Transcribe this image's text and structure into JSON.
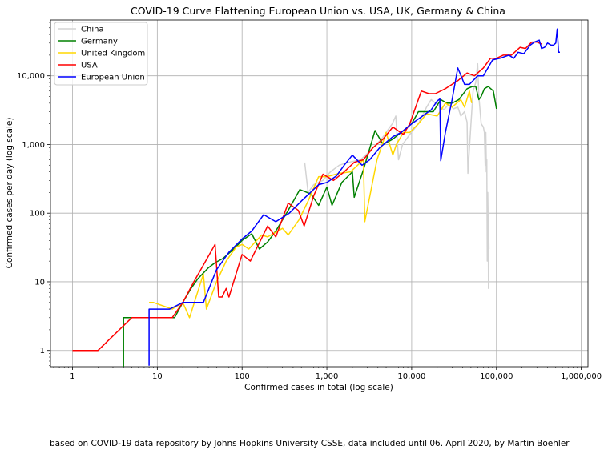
{
  "chart_data": {
    "type": "line",
    "title": "COVID-19 Curve Flattening European Union vs. USA, UK, Germany & China",
    "xlabel": "Confirmed cases in total (log scale)",
    "ylabel": "Confirmed cases per day (log scale)",
    "xscale": "log",
    "yscale": "log",
    "xlim": [
      0.55,
      1200000
    ],
    "ylim": [
      0.58,
      65000
    ],
    "xticks": [
      1,
      10,
      100,
      1000,
      10000,
      100000,
      1000000
    ],
    "xtick_labels": [
      "1",
      "10",
      "100",
      "1,000",
      "10,000",
      "100,000",
      "1,000,000"
    ],
    "yticks": [
      1,
      10,
      100,
      1000,
      10000
    ],
    "ytick_labels": [
      "1",
      "10",
      "100",
      "1,000",
      "10,000"
    ],
    "grid": true,
    "legend_position": "top-left",
    "series": [
      {
        "name": "China",
        "color": "#d3d3d3",
        "points": [
          [
            548,
            548
          ],
          [
            600,
            200
          ],
          [
            700,
            260
          ],
          [
            900,
            300
          ],
          [
            1100,
            400
          ],
          [
            1400,
            500
          ],
          [
            1800,
            550
          ],
          [
            2500,
            600
          ],
          [
            3200,
            800
          ],
          [
            4400,
            1200
          ],
          [
            5900,
            2000
          ],
          [
            6500,
            2600
          ],
          [
            7000,
            600
          ],
          [
            7800,
            1000
          ],
          [
            9500,
            1400
          ],
          [
            12000,
            2000
          ],
          [
            15000,
            3500
          ],
          [
            17000,
            4500
          ],
          [
            20000,
            3800
          ],
          [
            24000,
            3200
          ],
          [
            28000,
            4000
          ],
          [
            31000,
            3300
          ],
          [
            35000,
            3500
          ],
          [
            38000,
            2600
          ],
          [
            42000,
            3000
          ],
          [
            45000,
            2100
          ],
          [
            46000,
            380
          ],
          [
            50000,
            2000
          ],
          [
            53000,
            6000
          ],
          [
            57000,
            8000
          ],
          [
            60000,
            15000
          ],
          [
            62000,
            5000
          ],
          [
            66000,
            2000
          ],
          [
            70000,
            1800
          ],
          [
            72000,
            1500
          ],
          [
            74000,
            400
          ],
          [
            75000,
            1500
          ],
          [
            76000,
            500
          ],
          [
            77000,
            600
          ],
          [
            78000,
            20
          ],
          [
            79000,
            200
          ],
          [
            80000,
            60
          ],
          [
            80500,
            8
          ],
          [
            81000,
            50
          ],
          [
            81500,
            30
          ]
        ]
      },
      {
        "name": "Germany",
        "color": "#008000",
        "points": [
          [
            4,
            0.5
          ],
          [
            4,
            3
          ],
          [
            5,
            3
          ],
          [
            16,
            3
          ],
          [
            20,
            5
          ],
          [
            25,
            8
          ],
          [
            30,
            11
          ],
          [
            40,
            16
          ],
          [
            48,
            19
          ],
          [
            60,
            22
          ],
          [
            80,
            30
          ],
          [
            100,
            40
          ],
          [
            130,
            50
          ],
          [
            160,
            30
          ],
          [
            200,
            38
          ],
          [
            250,
            55
          ],
          [
            350,
            110
          ],
          [
            480,
            220
          ],
          [
            650,
            190
          ],
          [
            800,
            130
          ],
          [
            1000,
            240
          ],
          [
            1150,
            130
          ],
          [
            1500,
            280
          ],
          [
            2000,
            400
          ],
          [
            2100,
            170
          ],
          [
            2700,
            430
          ],
          [
            3700,
            1600
          ],
          [
            4600,
            1000
          ],
          [
            6000,
            1200
          ],
          [
            7500,
            1500
          ],
          [
            10000,
            2000
          ],
          [
            12000,
            3000
          ],
          [
            15000,
            3000
          ],
          [
            18000,
            3000
          ],
          [
            22000,
            4500
          ],
          [
            26000,
            4000
          ],
          [
            30000,
            4000
          ],
          [
            36000,
            4500
          ],
          [
            45000,
            6500
          ],
          [
            52000,
            7000
          ],
          [
            57000,
            7000
          ],
          [
            62000,
            4500
          ],
          [
            66000,
            5000
          ],
          [
            72000,
            6500
          ],
          [
            80000,
            7000
          ],
          [
            92000,
            6000
          ],
          [
            100000,
            3300
          ]
        ]
      },
      {
        "name": "United Kingdom",
        "color": "#ffd700",
        "points": [
          [
            8,
            5
          ],
          [
            9,
            5
          ],
          [
            15,
            4
          ],
          [
            20,
            5
          ],
          [
            24,
            3
          ],
          [
            35,
            13
          ],
          [
            38,
            4
          ],
          [
            50,
            10
          ],
          [
            65,
            20
          ],
          [
            85,
            32
          ],
          [
            100,
            35
          ],
          [
            120,
            30
          ],
          [
            170,
            48
          ],
          [
            200,
            45
          ],
          [
            300,
            60
          ],
          [
            350,
            48
          ],
          [
            470,
            80
          ],
          [
            600,
            150
          ],
          [
            800,
            340
          ],
          [
            1000,
            340
          ],
          [
            1400,
            380
          ],
          [
            1900,
            400
          ],
          [
            2700,
            600
          ],
          [
            2800,
            75
          ],
          [
            3900,
            600
          ],
          [
            4500,
            1000
          ],
          [
            5000,
            1500
          ],
          [
            6000,
            700
          ],
          [
            6600,
            1000
          ],
          [
            8000,
            1500
          ],
          [
            9500,
            1500
          ],
          [
            12000,
            2000
          ],
          [
            15000,
            2800
          ],
          [
            20000,
            2600
          ],
          [
            25000,
            4000
          ],
          [
            30000,
            3500
          ],
          [
            38000,
            4500
          ],
          [
            42000,
            3500
          ],
          [
            48000,
            6000
          ],
          [
            51000,
            4000
          ]
        ]
      },
      {
        "name": "USA",
        "color": "#ff0000",
        "points": [
          [
            1,
            1
          ],
          [
            2,
            1
          ],
          [
            5,
            3
          ],
          [
            15,
            3
          ],
          [
            20,
            5
          ],
          [
            27,
            10
          ],
          [
            48,
            35
          ],
          [
            53,
            6
          ],
          [
            58,
            6
          ],
          [
            65,
            8
          ],
          [
            70,
            6
          ],
          [
            100,
            25
          ],
          [
            125,
            20
          ],
          [
            200,
            65
          ],
          [
            250,
            45
          ],
          [
            350,
            140
          ],
          [
            460,
            110
          ],
          [
            540,
            65
          ],
          [
            700,
            180
          ],
          [
            900,
            370
          ],
          [
            1200,
            300
          ],
          [
            1600,
            400
          ],
          [
            2100,
            550
          ],
          [
            2700,
            600
          ],
          [
            3500,
            900
          ],
          [
            4600,
            1200
          ],
          [
            6000,
            1800
          ],
          [
            8000,
            1400
          ],
          [
            9500,
            2000
          ],
          [
            13000,
            6000
          ],
          [
            16000,
            5500
          ],
          [
            19000,
            5500
          ],
          [
            25000,
            6500
          ],
          [
            35000,
            8500
          ],
          [
            45000,
            11000
          ],
          [
            55000,
            10000
          ],
          [
            70000,
            13000
          ],
          [
            85000,
            18000
          ],
          [
            100000,
            18000
          ],
          [
            120000,
            20000
          ],
          [
            150000,
            20000
          ],
          [
            190000,
            26000
          ],
          [
            220000,
            25000
          ],
          [
            260000,
            31000
          ],
          [
            300000,
            31000
          ],
          [
            340000,
            29000
          ]
        ]
      },
      {
        "name": "European Union",
        "color": "#0000ff",
        "points": [
          [
            8,
            0.6
          ],
          [
            8,
            4
          ],
          [
            14,
            4
          ],
          [
            20,
            5
          ],
          [
            35,
            5
          ],
          [
            50,
            15
          ],
          [
            70,
            27
          ],
          [
            100,
            42
          ],
          [
            130,
            55
          ],
          [
            180,
            95
          ],
          [
            250,
            75
          ],
          [
            360,
            100
          ],
          [
            500,
            150
          ],
          [
            800,
            260
          ],
          [
            1000,
            280
          ],
          [
            1300,
            350
          ],
          [
            1600,
            500
          ],
          [
            2000,
            700
          ],
          [
            2600,
            500
          ],
          [
            3200,
            600
          ],
          [
            4200,
            900
          ],
          [
            6000,
            1300
          ],
          [
            7500,
            1500
          ],
          [
            10000,
            2000
          ],
          [
            14000,
            2700
          ],
          [
            17000,
            3200
          ],
          [
            20000,
            4300
          ],
          [
            21500,
            4600
          ],
          [
            22000,
            580
          ],
          [
            25000,
            1500
          ],
          [
            30000,
            4500
          ],
          [
            35000,
            13000
          ],
          [
            42000,
            7500
          ],
          [
            48000,
            7500
          ],
          [
            60000,
            10000
          ],
          [
            70000,
            10000
          ],
          [
            90000,
            17000
          ],
          [
            110000,
            18000
          ],
          [
            140000,
            20000
          ],
          [
            160000,
            18000
          ],
          [
            180000,
            22000
          ],
          [
            210000,
            21000
          ],
          [
            250000,
            28000
          ],
          [
            280000,
            31000
          ],
          [
            320000,
            33000
          ],
          [
            340000,
            25000
          ],
          [
            370000,
            26000
          ],
          [
            400000,
            30000
          ],
          [
            440000,
            28000
          ],
          [
            470000,
            28000
          ],
          [
            500000,
            30000
          ],
          [
            520000,
            48000
          ],
          [
            540000,
            22000
          ],
          [
            560000,
            22000
          ]
        ]
      }
    ],
    "caption": "based on COVID-19 data repository by Johns Hopkins University CSSE, data included until 06. April 2020, by Martin Boehler"
  }
}
